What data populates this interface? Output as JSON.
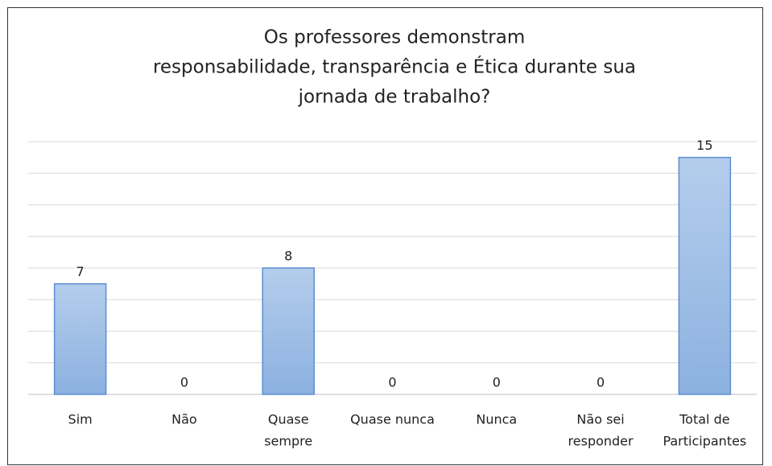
{
  "chart_data": {
    "type": "bar",
    "title": [
      "Os professores demonstram",
      "responsabilidade,  transparência  e Ética durante sua",
      "jornada de trabalho?"
    ],
    "categories": [
      [
        "Sim"
      ],
      [
        "Não"
      ],
      [
        "Quase",
        "sempre"
      ],
      [
        "Quase nunca"
      ],
      [
        "Nunca"
      ],
      [
        "Não sei",
        "responder"
      ],
      [
        "Total de",
        "Participantes"
      ]
    ],
    "values": [
      7,
      0,
      8,
      0,
      0,
      0,
      15
    ],
    "color": "#9dbde6",
    "ylim": [
      0,
      16
    ],
    "yticks": [
      0,
      2,
      4,
      6,
      8,
      10,
      12,
      14,
      16
    ],
    "grid": true
  }
}
